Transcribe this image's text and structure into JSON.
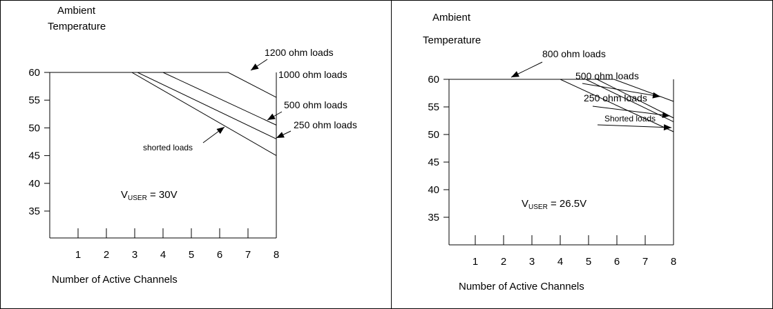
{
  "chart_data": [
    {
      "type": "line",
      "title": "",
      "ylabel": "Ambient Temperature",
      "xlabel": "Number of Active Channels",
      "x_ticks": [
        1,
        2,
        3,
        4,
        5,
        6,
        7,
        8
      ],
      "y_ticks": [
        35,
        40,
        45,
        50,
        55,
        60
      ],
      "xlim": [
        0,
        8
      ],
      "ylim": [
        30,
        60
      ],
      "grid": false,
      "annotation": {
        "main": "V",
        "sub": "USER",
        "rest": " = 30V"
      },
      "series": [
        {
          "name": "1200 ohm loads",
          "x": [
            0,
            6.3,
            8
          ],
          "y": [
            60,
            60,
            55.5
          ],
          "label_point": [
            7.3,
            58.0
          ]
        },
        {
          "name": "1000 ohm loads",
          "x": [
            0,
            4,
            8
          ],
          "y": [
            60,
            60,
            50.5
          ],
          "label_point": null
        },
        {
          "name": "500 ohm loads",
          "x": [
            0,
            3.1,
            8
          ],
          "y": [
            60,
            60,
            48
          ],
          "label_point": [
            8,
            50.5
          ]
        },
        {
          "name": "250 ohm loads",
          "x": [
            0,
            2.9,
            8
          ],
          "y": [
            60,
            60,
            45
          ],
          "label_point": [
            8,
            48.1
          ]
        },
        {
          "name": "shorted loads",
          "x": [],
          "y": [],
          "label_point": [
            6.25,
            51.5
          ]
        }
      ]
    },
    {
      "type": "line",
      "title": "",
      "ylabel": "Ambient Temperature",
      "xlabel": "Number of Active Channels",
      "x_ticks": [
        1,
        2,
        3,
        4,
        5,
        6,
        7,
        8
      ],
      "y_ticks": [
        35,
        40,
        45,
        50,
        55,
        60
      ],
      "xlim": [
        0,
        8
      ],
      "ylim": [
        30,
        60
      ],
      "grid": false,
      "annotation": {
        "main": "V",
        "sub": "USER",
        "rest": " = 26.5V"
      },
      "series": [
        {
          "name": "800 ohm loads",
          "x": [
            0,
            5.9,
            8
          ],
          "y": [
            60,
            60,
            56
          ],
          "label_point": [
            7.1,
            60
          ]
        },
        {
          "name": "500 ohm loads",
          "x": [
            0,
            5.3,
            8
          ],
          "y": [
            60,
            60,
            53
          ],
          "label_point": [
            7.6,
            57.5
          ]
        },
        {
          "name": "250 ohm loads",
          "x": [
            0,
            4.9,
            8
          ],
          "y": [
            60,
            60,
            52.3
          ],
          "label_point": [
            8,
            52.5
          ]
        },
        {
          "name": "Shorted loads",
          "x": [
            0,
            4,
            8
          ],
          "y": [
            60,
            60,
            50.5
          ],
          "label_point": [
            8,
            50.7
          ]
        }
      ]
    }
  ]
}
